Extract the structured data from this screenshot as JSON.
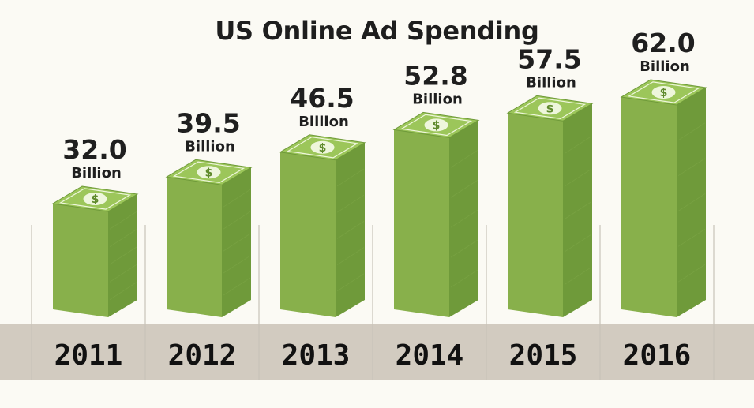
{
  "title": "US Online Ad Spending",
  "colors": {
    "background": "#fbfaf4",
    "band": "#d2cbc0",
    "divider": "#c8c3b8",
    "stack_front": "#88b04b",
    "stack_side": "#6f9a3a",
    "bill_top": "#9cc65a",
    "bill_inner": "#b7d98a",
    "text": "#1f1f1f"
  },
  "chart_data": {
    "type": "bar",
    "title": "US Online Ad Spending",
    "categories": [
      "2011",
      "2012",
      "2013",
      "2014",
      "2015",
      "2016"
    ],
    "values": [
      32.0,
      39.5,
      46.5,
      52.8,
      57.5,
      62.0
    ],
    "value_labels": [
      "32.0",
      "39.5",
      "46.5",
      "52.8",
      "57.5",
      "62.0"
    ],
    "unit_label": "Billion",
    "bar_icon": "dollar-bill-stack-icon",
    "grid": false,
    "legend": "none"
  }
}
